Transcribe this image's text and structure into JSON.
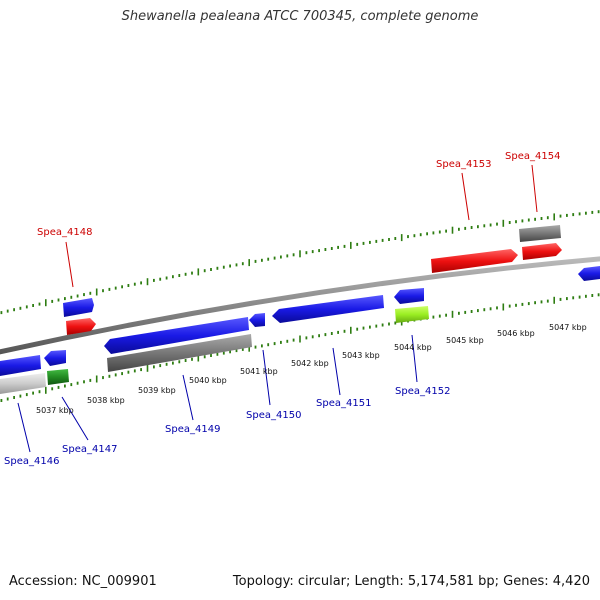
{
  "title": "Shewanella pealeana ATCC 700345, complete genome",
  "footer": {
    "accession": "Accession: NC_009901",
    "summary": "Topology: circular; Length: 5,174,581 bp; Genes: 4,420"
  },
  "colors": {
    "backbone": "#888888",
    "forward_cds": "#ee1111",
    "reverse_cds": "#1a1ae6",
    "rna": "#777777",
    "green": "#228b22",
    "lime": "#9aee22",
    "light": "#cccccc",
    "tick": "#2e7d12",
    "forward_label": "#cc0000",
    "reverse_label": "#0000aa"
  },
  "kbp_labels": [
    "5037 kbp",
    "5038 kbp",
    "5039 kbp",
    "5040 kbp",
    "5041 kbp",
    "5042 kbp",
    "5043 kbp",
    "5044 kbp",
    "5045 kbp",
    "5046 kbp",
    "5047 kbp"
  ],
  "forward_genes": [
    {
      "name": "Spea_4148"
    },
    {
      "name": "Spea_4153"
    },
    {
      "name": "Spea_4154"
    }
  ],
  "reverse_genes": [
    {
      "name": "Spea_4146"
    },
    {
      "name": "Spea_4147"
    },
    {
      "name": "Spea_4149"
    },
    {
      "name": "Spea_4150"
    },
    {
      "name": "Spea_4151"
    },
    {
      "name": "Spea_4152"
    }
  ]
}
